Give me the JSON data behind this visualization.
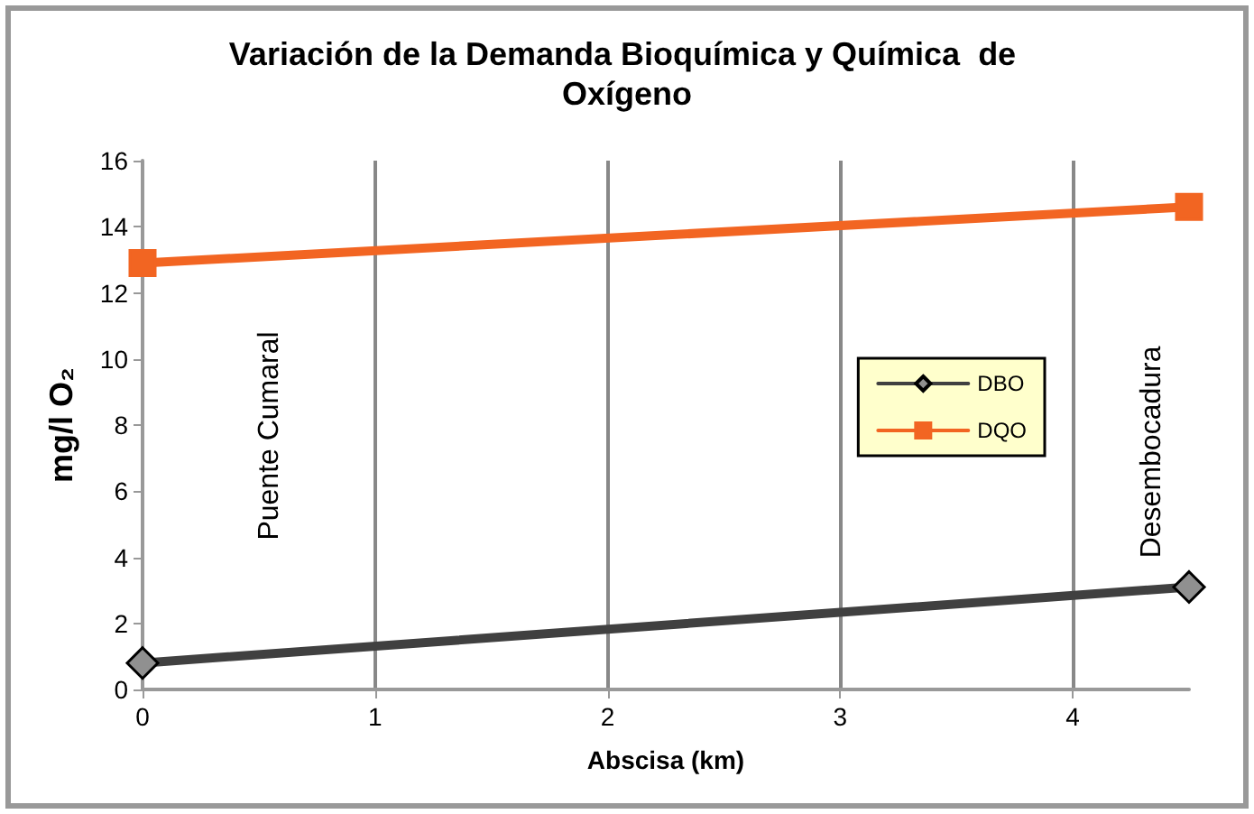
{
  "chart_data": {
    "type": "line",
    "title": "Variación de la Demanda Bioquímica y Química  de Oxígeno",
    "xlabel": "Abscisa (km)",
    "ylabel": "mg/l O₂",
    "x": [
      0,
      4.5
    ],
    "series": [
      {
        "name": "DBO",
        "color": "#404040",
        "values": [
          0.8,
          3.1
        ],
        "marker": "diamond"
      },
      {
        "name": "DQO",
        "color": "#f26522",
        "values": [
          12.9,
          14.6
        ],
        "marker": "square"
      }
    ],
    "annotations": [
      "Puente Cumaral",
      "Desembocadura"
    ],
    "xlim": [
      0,
      4.5
    ],
    "xticks": [
      0,
      1,
      2,
      3,
      4
    ],
    "ylim": [
      0,
      16
    ],
    "yticks": [
      0,
      2,
      4,
      6,
      8,
      10,
      12,
      14,
      16
    ],
    "grid": "x",
    "legend": "right",
    "line_style": "solid"
  }
}
